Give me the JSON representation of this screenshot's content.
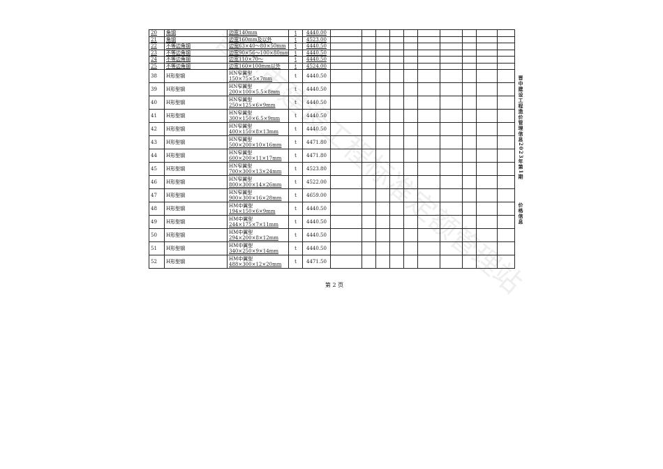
{
  "rows_small": [
    {
      "no": "20",
      "name": "角钢",
      "spec": "边宽140mm",
      "unit": "t",
      "price": "4440.00"
    },
    {
      "no": "21",
      "name": "角钢",
      "spec": "边宽160mm及以外",
      "unit": "t",
      "price": "4523.00"
    },
    {
      "no": "22",
      "name": "不等边角钢",
      "spec": "边宽63×40～80×50mm",
      "unit": "t",
      "price": "4440.50"
    },
    {
      "no": "23",
      "name": "不等边角钢",
      "spec": "边宽90×56～100×80mm",
      "unit": "t",
      "price": "4440.50"
    },
    {
      "no": "24",
      "name": "不等边角钢",
      "spec": "边宽110×70～",
      "unit": "t",
      "price": "4440.50"
    },
    {
      "no": "25",
      "name": "不等边角钢",
      "spec": "边宽160×100mm以外",
      "unit": "t",
      "price": "4524.00"
    }
  ],
  "rows_tall": [
    {
      "no": "38",
      "name": "H形型钢",
      "spec1": "HN窄翼型",
      "spec2": "150×75×5×7mm",
      "unit": "t",
      "price": "4440.50"
    },
    {
      "no": "39",
      "name": "H形型钢",
      "spec1": "HN窄翼型",
      "spec2": "200×100×5.5×8mm",
      "unit": "t",
      "price": "4440.50"
    },
    {
      "no": "40",
      "name": "H形型钢",
      "spec1": "HN窄翼型",
      "spec2": "250×125×6×9mm",
      "unit": "t",
      "price": "4440.50"
    },
    {
      "no": "41",
      "name": "H形型钢",
      "spec1": "HN窄翼型",
      "spec2": "300×150×6.5×9mm",
      "unit": "t",
      "price": "4440.50"
    },
    {
      "no": "42",
      "name": "H形型钢",
      "spec1": "HN窄翼型",
      "spec2": "400×150×8×13mm",
      "unit": "t",
      "price": "4440.50"
    },
    {
      "no": "43",
      "name": "H形型钢",
      "spec1": "HN窄翼型",
      "spec2": "500×200×10×16mm",
      "unit": "t",
      "price": "4471.80"
    },
    {
      "no": "44",
      "name": "H形型钢",
      "spec1": "HN窄翼型",
      "spec2": "600×200×11×17mm",
      "unit": "t",
      "price": "4471.80"
    },
    {
      "no": "45",
      "name": "H形型钢",
      "spec1": "HN窄翼型",
      "spec2": "700×300×13×24mm",
      "unit": "t",
      "price": "4523.80"
    },
    {
      "no": "46",
      "name": "H形型钢",
      "spec1": "HN窄翼型",
      "spec2": "800×300×14×26mm",
      "unit": "t",
      "price": "4522.00"
    },
    {
      "no": "47",
      "name": "H形型钢",
      "spec1": "HN窄翼型",
      "spec2": "900×300×16×28mm",
      "unit": "t",
      "price": "4659.00"
    },
    {
      "no": "48",
      "name": "H形型钢",
      "spec1": "HM中翼型",
      "spec2": "194×150×6×9mm",
      "unit": "t",
      "price": "4440.50"
    },
    {
      "no": "49",
      "name": "H形型钢",
      "spec1": "HM中翼型",
      "spec2": "244×175×7×11mm",
      "unit": "t",
      "price": "4440.50"
    },
    {
      "no": "50",
      "name": "H形型钢",
      "spec1": "HM中翼型",
      "spec2": "294×200×8×12mm",
      "unit": "t",
      "price": "4440.50"
    },
    {
      "no": "51",
      "name": "H形型钢",
      "spec1": "HM中翼型",
      "spec2": "340×250×9×14mm",
      "unit": "t",
      "price": "4440.50"
    },
    {
      "no": "52",
      "name": "H形型钢",
      "spec1": "HM中翼型",
      "spec2": "488×300×12×20mm",
      "unit": "t",
      "price": "4471.50"
    }
  ],
  "side_title": "晋中建设工程造价管理信息2023年第1期",
  "side_section": "价格信息",
  "footer": "第 2 页",
  "watermark": "晋中市建设工程标准定额管理站"
}
